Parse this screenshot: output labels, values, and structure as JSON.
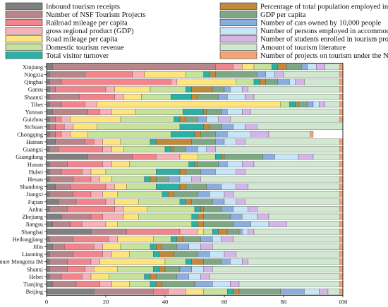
{
  "chart_data": {
    "type": "bar",
    "orientation": "horizontal",
    "stacked": true,
    "xlim": [
      0,
      100
    ],
    "xticks": [
      0,
      20,
      40,
      60,
      80,
      100
    ],
    "grid": false,
    "legend_position": "top",
    "categories": [
      "Xinjiang",
      "Ningxia",
      "Qinghai",
      "Gansu",
      "Shaanxi",
      "Tibet",
      "Yunnan",
      "Guizhou",
      "Sichuan",
      "Chongqing",
      "Hainan",
      "Guangxi",
      "Guangdong",
      "Hunan",
      "Hubei",
      "Henan",
      "Shandong",
      "Jiangxi",
      "Fujian",
      "Anhui",
      "Zhejiang",
      "Jiangsu",
      "Shanghai",
      "Heilongjiang",
      "Jilin",
      "Liaoning",
      "Inner Mongoria IM",
      "Shanxi",
      "Hebei",
      "Tianjing",
      "Beijing"
    ],
    "series": [
      {
        "name": "Inbound tourism receipts",
        "color": "#808080",
        "values": [
          2,
          1,
          1,
          1,
          1,
          1,
          2,
          1,
          1,
          1,
          3,
          1,
          14,
          1,
          1,
          1,
          3,
          1,
          4,
          1,
          5,
          2,
          15,
          1,
          2,
          1,
          1,
          1,
          1,
          2,
          16
        ]
      },
      {
        "name": "Number of NSF Tourism Projects",
        "color": "#b8868a",
        "values": [
          55,
          12,
          4,
          2,
          10,
          4,
          12,
          2,
          2,
          2,
          10,
          3,
          15,
          6,
          4,
          8,
          5,
          8,
          6,
          6,
          10,
          6,
          12,
          8,
          4,
          8,
          6,
          6,
          4,
          8,
          20
        ]
      },
      {
        "name": "Railroad mileage per capita",
        "color": "#f2848b",
        "values": [
          6,
          16,
          37,
          17,
          12,
          8,
          4,
          2,
          3,
          2,
          3,
          15,
          8,
          12,
          7,
          6,
          12,
          6,
          10,
          16,
          4,
          4,
          18,
          12,
          10,
          10,
          8,
          6,
          7,
          8,
          5
        ]
      },
      {
        "name": "gross regional product (GDP)",
        "color": "#f7b2b8",
        "values": [
          3,
          4,
          2,
          3,
          3,
          4,
          4,
          3,
          3,
          3,
          3,
          3,
          8,
          3,
          3,
          3,
          3,
          4,
          3,
          3,
          7,
          8,
          6,
          3,
          3,
          3,
          3,
          3,
          3,
          4,
          6
        ]
      },
      {
        "name": "Road mileage per capita",
        "color": "#fde47c",
        "values": [
          4,
          14,
          20,
          12,
          6,
          62,
          8,
          17,
          8,
          6,
          6,
          4,
          6,
          6,
          5,
          4,
          4,
          5,
          8,
          8,
          5,
          4,
          2,
          12,
          6,
          6,
          22,
          8,
          6,
          6,
          6
        ]
      },
      {
        "name": "Domestic tourism revenue",
        "color": "#c5e39b",
        "values": [
          6,
          6,
          6,
          12,
          10,
          3,
          16,
          18,
          28,
          28,
          10,
          14,
          6,
          20,
          17,
          11,
          10,
          15,
          14,
          16,
          18,
          25,
          3,
          6,
          10,
          8,
          7,
          12,
          12,
          7,
          8
        ]
      },
      {
        "name": "Total visitor turnover",
        "color": "#2ab0a4",
        "values": [
          2,
          2,
          2,
          2,
          7,
          2,
          7,
          2,
          8,
          8,
          2,
          2,
          2,
          2,
          8,
          2,
          8,
          2,
          2,
          2,
          2,
          2,
          2,
          2,
          2,
          2,
          2,
          2,
          2,
          2,
          2
        ]
      },
      {
        "name": "Percentage of total population employed in tourism",
        "color": "#bf8a3c",
        "values": [
          3,
          2,
          2,
          7,
          2,
          1,
          1,
          2,
          2,
          2,
          12,
          1,
          1,
          1,
          2,
          2,
          2,
          2,
          2,
          1,
          2,
          2,
          3,
          2,
          2,
          5,
          4,
          2,
          2,
          2,
          2
        ]
      },
      {
        "name": "GDP per capita",
        "color": "#7ea883",
        "values": [
          5,
          14,
          4,
          4,
          7,
          3,
          5,
          4,
          4,
          5,
          8,
          4,
          13,
          7,
          5,
          4,
          7,
          8,
          7,
          6,
          9,
          10,
          4,
          6,
          5,
          8,
          6,
          5,
          7,
          11,
          14
        ]
      },
      {
        "name": "Number of cars owned by 10,000 people",
        "color": "#8aaede",
        "values": [
          2,
          3,
          4,
          2,
          3,
          2,
          2,
          3,
          4,
          4,
          3,
          4,
          4,
          3,
          5,
          4,
          5,
          4,
          4,
          4,
          4,
          6,
          1,
          4,
          4,
          4,
          3,
          4,
          4,
          6,
          8
        ]
      },
      {
        "name": "Number of persons employed in accommodation and catering",
        "color": "#c5e6f7",
        "values": [
          3,
          3,
          2,
          4,
          6,
          2,
          5,
          4,
          4,
          8,
          4,
          3,
          8,
          5,
          7,
          4,
          5,
          5,
          4,
          5,
          5,
          6,
          2,
          3,
          4,
          5,
          4,
          4,
          4,
          6,
          5
        ]
      },
      {
        "name": "Number of students enrolled in tourism programs in higher education",
        "color": "#d3b6e8",
        "values": [
          3,
          3,
          3,
          2,
          3,
          2,
          3,
          4,
          4,
          6,
          3,
          3,
          5,
          4,
          3,
          3,
          4,
          3,
          3,
          3,
          4,
          6,
          2,
          4,
          4,
          4,
          2,
          3,
          3,
          3,
          3
        ]
      },
      {
        "name": "Amount of tourism literature",
        "color": "#d0e8d0",
        "values": [
          5,
          19,
          12,
          31,
          29,
          5,
          30,
          37,
          29,
          14,
          32,
          42,
          9,
          29,
          32,
          47,
          31,
          36,
          32,
          28,
          24,
          18,
          29,
          36,
          43,
          35,
          31,
          43,
          44,
          34,
          4
        ]
      },
      {
        "name": "Number of projects on tourism under the National Social Science Foundation",
        "color": "#f7a473",
        "values": [
          1,
          1,
          1,
          1,
          1,
          1,
          1,
          1,
          1,
          1,
          1,
          1,
          1,
          1,
          1,
          1,
          1,
          1,
          1,
          1,
          1,
          1,
          1,
          1,
          1,
          1,
          1,
          1,
          1,
          1,
          1
        ]
      }
    ]
  }
}
